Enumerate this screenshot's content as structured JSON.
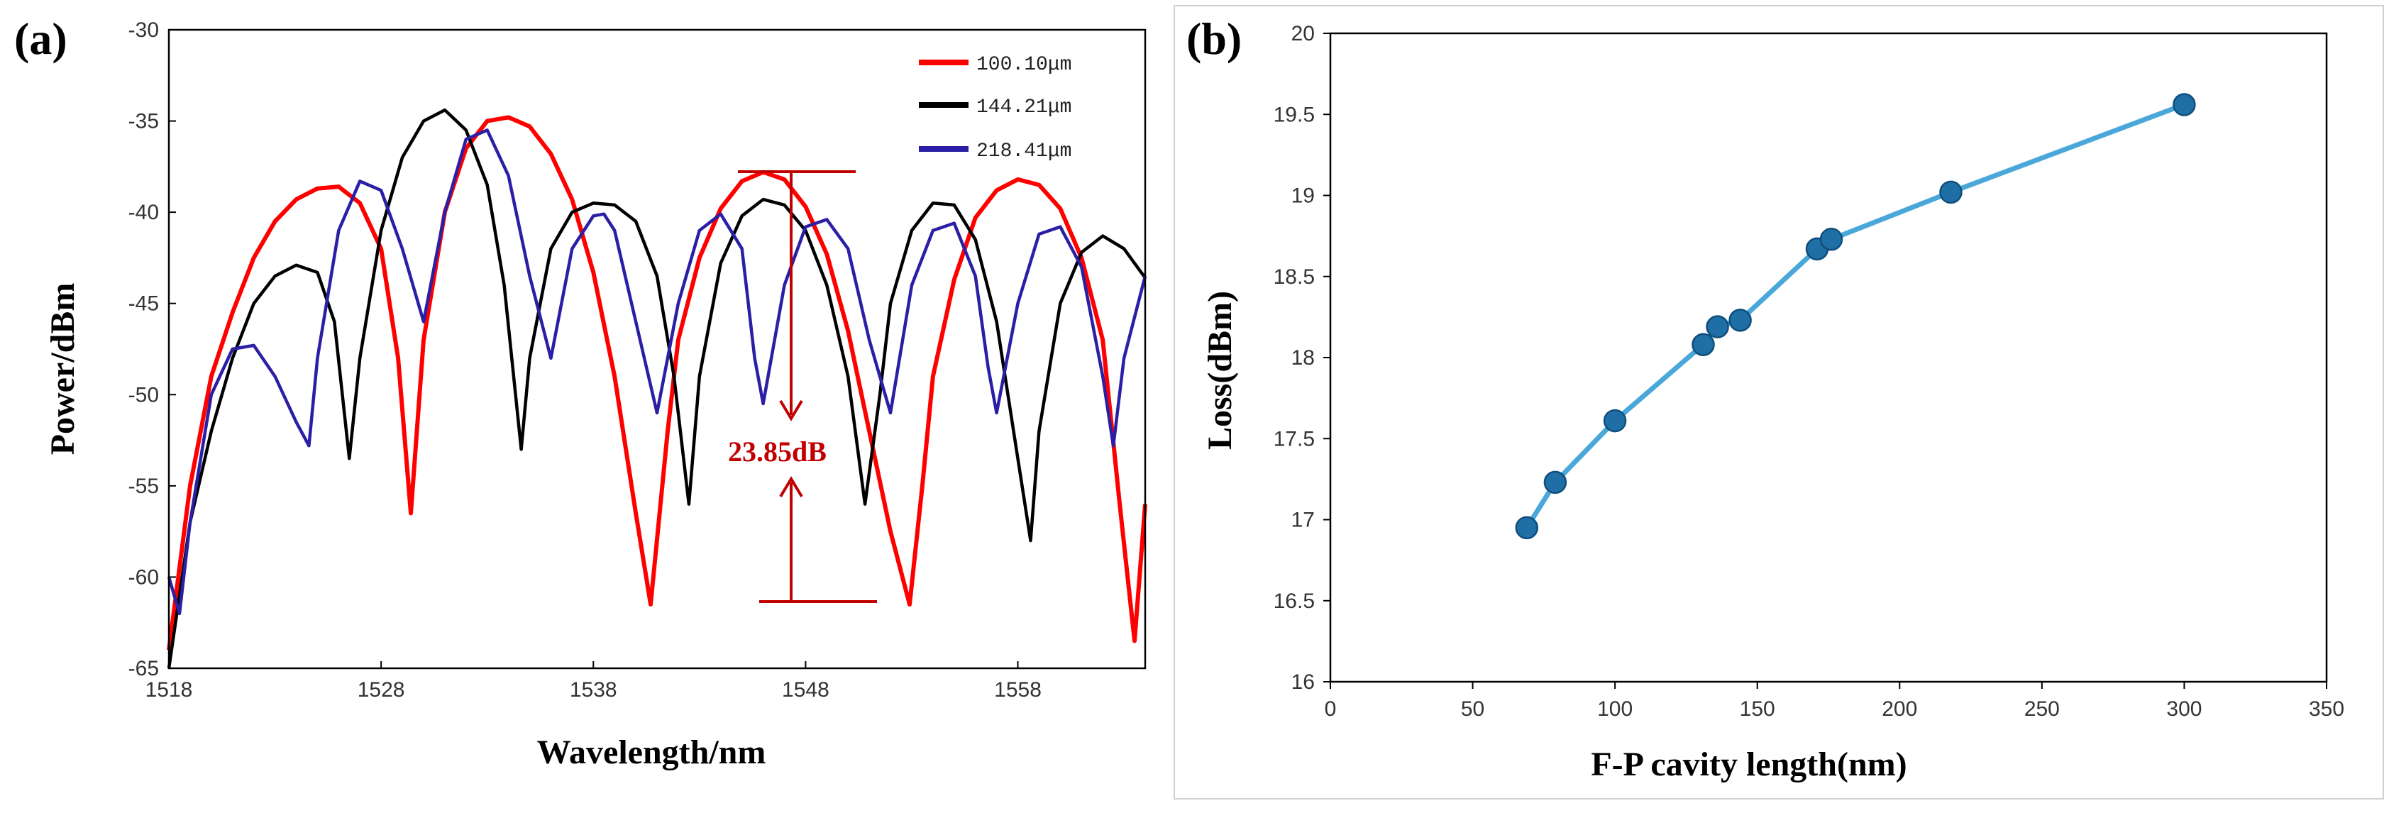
{
  "panel_a_label": "(a)",
  "panel_b_label": "(b)",
  "colors": {
    "red": "#ff0000",
    "black": "#000000",
    "blue": "#2a1fa5",
    "annotation": "#c00000",
    "panel_b_line": "#4aa7d9",
    "panel_b_marker": "#1f6fa6"
  },
  "chart_data": [
    {
      "type": "line",
      "title": "",
      "xlabel": "Wavelength/nm",
      "ylabel": "Power/dBm",
      "xlim": [
        1518,
        1564
      ],
      "ylim": [
        -65,
        -30
      ],
      "xticks": [
        1518,
        1528,
        1538,
        1548,
        1558
      ],
      "yticks": [
        -65,
        -60,
        -55,
        -50,
        -45,
        -40,
        -35,
        -30
      ],
      "legend_position": "top-right",
      "series": [
        {
          "name": "100.10μm",
          "x": [
            1518.0,
            1519.0,
            1520.0,
            1521.0,
            1522.0,
            1523.0,
            1524.0,
            1525.0,
            1526.0,
            1527.0,
            1528.0,
            1528.8,
            1529.4,
            1530.0,
            1531.0,
            1532.0,
            1533.0,
            1534.0,
            1535.0,
            1536.0,
            1537.0,
            1538.0,
            1539.0,
            1540.0,
            1540.7,
            1541.5,
            1542.0,
            1543.0,
            1544.0,
            1545.0,
            1546.0,
            1547.0,
            1548.0,
            1549.0,
            1550.0,
            1551.0,
            1552.0,
            1552.9,
            1553.5,
            1554.0,
            1555.0,
            1556.0,
            1557.0,
            1558.0,
            1559.0,
            1560.0,
            1561.0,
            1562.0,
            1562.8,
            1563.5,
            1564.0
          ],
          "y": [
            -64.0,
            -55.0,
            -49.0,
            -45.5,
            -42.5,
            -40.5,
            -39.3,
            -38.7,
            -38.6,
            -39.5,
            -42.0,
            -48.0,
            -56.5,
            -47.0,
            -40.0,
            -36.5,
            -35.0,
            -34.8,
            -35.3,
            -36.8,
            -39.3,
            -43.3,
            -49.0,
            -56.5,
            -61.5,
            -52.0,
            -47.0,
            -42.5,
            -39.8,
            -38.3,
            -37.8,
            -38.2,
            -39.7,
            -42.3,
            -46.5,
            -52.0,
            -57.5,
            -61.5,
            -55.0,
            -49.0,
            -43.7,
            -40.3,
            -38.8,
            -38.2,
            -38.5,
            -39.8,
            -42.5,
            -47.0,
            -56.0,
            -63.5,
            -56.0
          ]
        },
        {
          "name": "144.21μm",
          "x": [
            1518.0,
            1519.0,
            1520.0,
            1521.0,
            1522.0,
            1523.0,
            1524.0,
            1525.0,
            1525.8,
            1526.5,
            1527.0,
            1528.0,
            1529.0,
            1530.0,
            1531.0,
            1532.0,
            1533.0,
            1533.8,
            1534.6,
            1535.0,
            1536.0,
            1537.0,
            1538.0,
            1539.0,
            1540.0,
            1541.0,
            1541.8,
            1542.5,
            1543.0,
            1544.0,
            1545.0,
            1546.0,
            1547.0,
            1548.0,
            1549.0,
            1550.0,
            1550.8,
            1551.5,
            1552.0,
            1553.0,
            1554.0,
            1555.0,
            1556.0,
            1557.0,
            1557.8,
            1558.6,
            1559.0,
            1560.0,
            1561.0,
            1562.0,
            1563.0,
            1564.0
          ],
          "y": [
            -65.0,
            -57.0,
            -52.0,
            -48.0,
            -45.0,
            -43.5,
            -42.9,
            -43.3,
            -46.0,
            -53.5,
            -48.0,
            -41.0,
            -37.0,
            -35.0,
            -34.4,
            -35.5,
            -38.5,
            -44.0,
            -53.0,
            -48.0,
            -42.0,
            -40.0,
            -39.5,
            -39.6,
            -40.5,
            -43.5,
            -49.0,
            -56.0,
            -49.0,
            -42.8,
            -40.2,
            -39.3,
            -39.6,
            -41.0,
            -44.0,
            -49.0,
            -56.0,
            -50.0,
            -45.0,
            -41.0,
            -39.5,
            -39.6,
            -41.5,
            -46.0,
            -52.0,
            -58.0,
            -52.0,
            -45.0,
            -42.2,
            -41.3,
            -42.0,
            -43.6
          ]
        },
        {
          "name": "218.41μm",
          "x": [
            1518.0,
            1518.5,
            1519.0,
            1520.0,
            1521.0,
            1522.0,
            1523.0,
            1524.0,
            1524.6,
            1525.0,
            1526.0,
            1527.0,
            1528.0,
            1529.0,
            1530.0,
            1531.0,
            1532.0,
            1533.0,
            1534.0,
            1535.0,
            1536.0,
            1537.0,
            1538.0,
            1538.5,
            1539.0,
            1540.0,
            1541.0,
            1542.0,
            1543.0,
            1544.0,
            1545.0,
            1545.6,
            1546.0,
            1547.0,
            1548.0,
            1549.0,
            1550.0,
            1551.0,
            1552.0,
            1553.0,
            1554.0,
            1555.0,
            1556.0,
            1556.6,
            1557.0,
            1558.0,
            1559.0,
            1560.0,
            1561.0,
            1562.0,
            1562.5,
            1563.0,
            1564.0
          ],
          "y": [
            -60.0,
            -62.0,
            -57.0,
            -50.0,
            -47.5,
            -47.3,
            -49.0,
            -51.5,
            -52.8,
            -48.0,
            -41.0,
            -38.3,
            -38.8,
            -42.0,
            -46.0,
            -40.0,
            -36.0,
            -35.5,
            -38.0,
            -43.5,
            -48.0,
            -42.0,
            -40.2,
            -40.1,
            -41.0,
            -46.0,
            -51.0,
            -45.0,
            -41.0,
            -40.1,
            -42.0,
            -48.0,
            -50.5,
            -44.0,
            -40.8,
            -40.4,
            -42.0,
            -47.0,
            -51.0,
            -44.0,
            -41.0,
            -40.6,
            -43.5,
            -48.5,
            -51.0,
            -45.0,
            -41.2,
            -40.8,
            -43.0,
            -49.0,
            -52.8,
            -48.0,
            -43.5
          ]
        }
      ],
      "annotations": [
        {
          "text": "23.85dB"
        }
      ]
    },
    {
      "type": "line",
      "title": "",
      "xlabel": "F-P cavity length(nm)",
      "ylabel": "Loss(dBm)",
      "xlim": [
        0,
        350
      ],
      "ylim": [
        16,
        20
      ],
      "xticks": [
        0,
        50,
        100,
        150,
        200,
        250,
        300,
        350
      ],
      "yticks": [
        16,
        16.5,
        17,
        17.5,
        18,
        18.5,
        19,
        19.5,
        20
      ],
      "grid": false,
      "legend_position": "none",
      "series": [
        {
          "name": "",
          "x": [
            69,
            79,
            100,
            131,
            136,
            144,
            171,
            176,
            218,
            300
          ],
          "y": [
            16.95,
            17.23,
            17.61,
            18.08,
            18.19,
            18.23,
            18.67,
            18.73,
            19.02,
            19.56
          ]
        }
      ]
    }
  ]
}
